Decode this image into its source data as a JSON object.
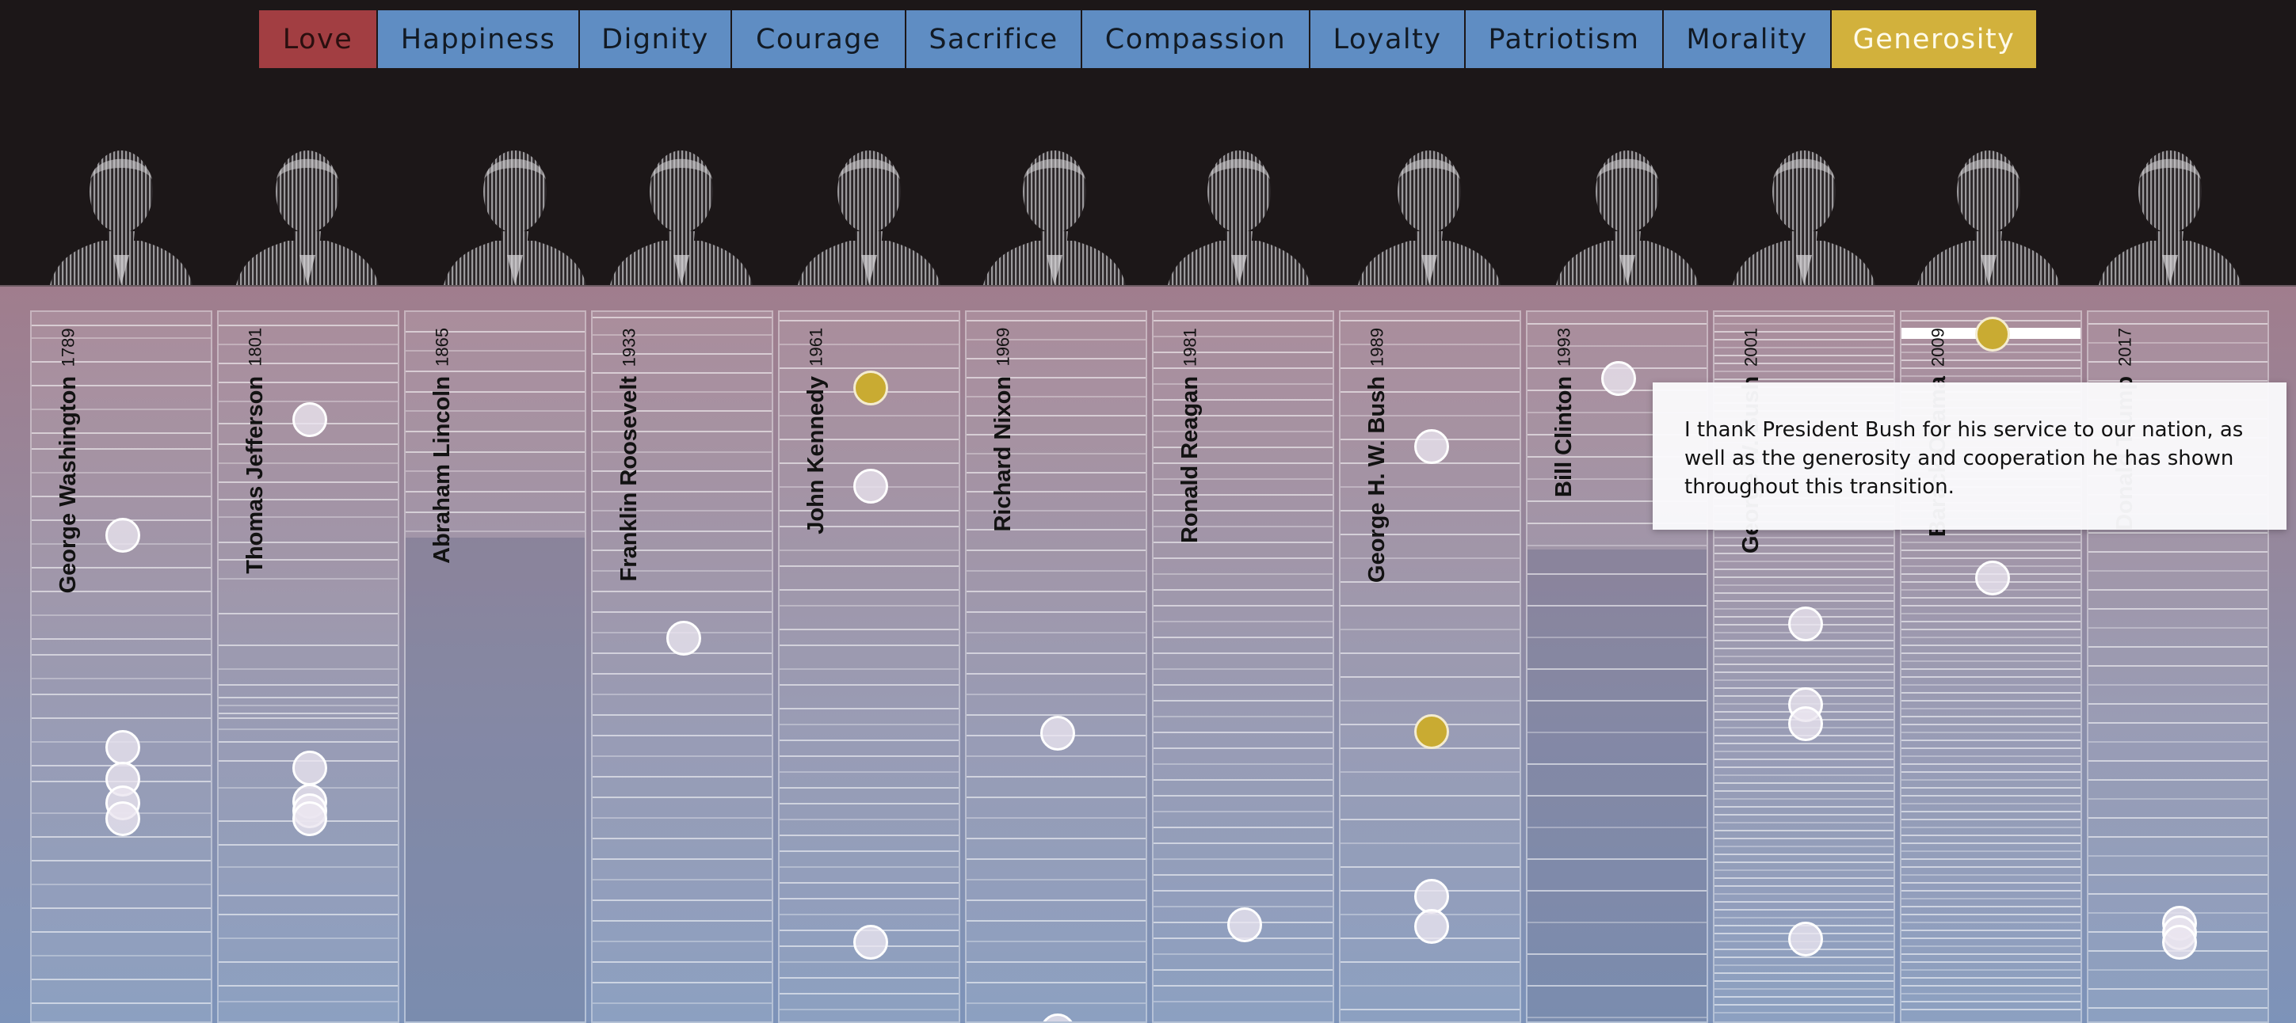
{
  "tabs": [
    {
      "label": "Love",
      "color": "#a23e42",
      "class": "love"
    },
    {
      "label": "Happiness",
      "color": "#5f8dc3",
      "class": ""
    },
    {
      "label": "Dignity",
      "color": "#5f8dc3",
      "class": ""
    },
    {
      "label": "Courage",
      "color": "#5f8dc3",
      "class": ""
    },
    {
      "label": "Sacrifice",
      "color": "#5f8dc3",
      "class": ""
    },
    {
      "label": "Compassion",
      "color": "#5f8dc3",
      "class": ""
    },
    {
      "label": "Loyalty",
      "color": "#5f8dc3",
      "class": ""
    },
    {
      "label": "Patriotism",
      "color": "#5f8dc3",
      "class": ""
    },
    {
      "label": "Morality",
      "color": "#5f8dc3",
      "class": ""
    },
    {
      "label": "Generosity",
      "color": "#d2b13c",
      "class": "active"
    }
  ],
  "presidents": [
    {
      "name": "George Washington",
      "year": "1789"
    },
    {
      "name": "Thomas Jefferson",
      "year": "1801"
    },
    {
      "name": "Abraham Lincoln",
      "year": "1865"
    },
    {
      "name": "Franklin Roosevelt",
      "year": "1933"
    },
    {
      "name": "John Kennedy",
      "year": "1961"
    },
    {
      "name": "Richard Nixon",
      "year": "1969"
    },
    {
      "name": "Ronald Reagan",
      "year": "1981"
    },
    {
      "name": "George H. W. Bush",
      "year": "1989"
    },
    {
      "name": "Bill Clinton",
      "year": "1993"
    },
    {
      "name": "George W. Bush",
      "year": "2001"
    },
    {
      "name": "Barack Obama",
      "year": "2009"
    },
    {
      "name": "Donald Trump",
      "year": "2017"
    }
  ],
  "tooltip": {
    "text": "I thank President Bush for his service to our nation, as well as the generosity and cooperation he has shown throughout this transition."
  },
  "colors": {
    "accent_highlight": "#c9ab32",
    "love": "#a23e42",
    "tab_blue": "#5f8dc3"
  }
}
